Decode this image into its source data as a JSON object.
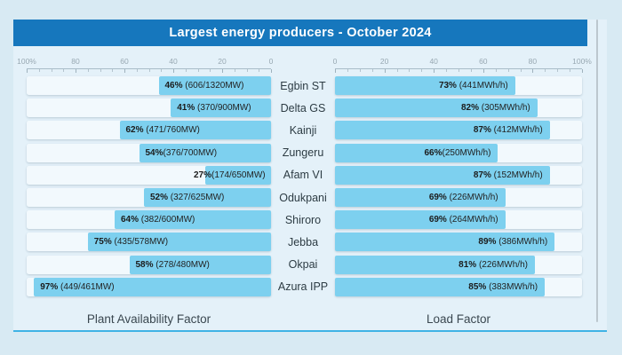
{
  "colors": {
    "header_bg": "#1677bd",
    "bar_fill": "#7dd0ef",
    "accent_line": "#3fb3e5",
    "card_bg": "#e4f1f9",
    "page_bg": "#d8eaf3"
  },
  "chart_data": {
    "type": "bar",
    "layout": "mirrored-horizontal",
    "title": "Largest energy producers - October 2024",
    "categories": [
      "Egbin ST",
      "Delta GS",
      "Kainji",
      "Zungeru",
      "Afam VI",
      "Odukpani",
      "Shiroro",
      "Jebba",
      "Okpai",
      "Azura IPP"
    ],
    "xlim": [
      0,
      100
    ],
    "grid": false,
    "series": [
      {
        "name": "Plant Availability Factor",
        "side": "left",
        "axis_ticks": [
          "100%",
          "80",
          "60",
          "40",
          "20",
          "0"
        ],
        "values": [
          46,
          41,
          62,
          54,
          27,
          52,
          64,
          75,
          58,
          97
        ],
        "value_labels": [
          {
            "pct": "46%",
            "detail": " (606/1320MW)"
          },
          {
            "pct": "41%",
            "detail": " (370/900MW)"
          },
          {
            "pct": "62%",
            "detail": " (471/760MW)"
          },
          {
            "pct": "54%",
            "detail": "(376/700MW)"
          },
          {
            "pct": "27%",
            "detail": "(174/650MW)"
          },
          {
            "pct": "52%",
            "detail": " (327/625MW)"
          },
          {
            "pct": "64%",
            "detail": " (382/600MW)"
          },
          {
            "pct": "75%",
            "detail": " (435/578MW)"
          },
          {
            "pct": "58%",
            "detail": " (278/480MW)"
          },
          {
            "pct": "97%",
            "detail": " (449/461MW)"
          }
        ]
      },
      {
        "name": "Load Factor",
        "side": "right",
        "axis_ticks": [
          "0",
          "20",
          "40",
          "60",
          "80",
          "100%"
        ],
        "values": [
          73,
          82,
          87,
          66,
          87,
          69,
          69,
          89,
          81,
          85
        ],
        "value_labels": [
          {
            "pct": "73%",
            "detail": " (441MWh/h)"
          },
          {
            "pct": "82%",
            "detail": " (305MWh/h)"
          },
          {
            "pct": "87%",
            "detail": " (412MWh/h)"
          },
          {
            "pct": "66%",
            "detail": "(250MWh/h)"
          },
          {
            "pct": "87%",
            "detail": " (152MWh/h)"
          },
          {
            "pct": "69%",
            "detail": " (226MWh/h)"
          },
          {
            "pct": "69%",
            "detail": " (264MWh/h)"
          },
          {
            "pct": "89%",
            "detail": " (386MWh/h)"
          },
          {
            "pct": "81%",
            "detail": " (226MWh/h)"
          },
          {
            "pct": "85%",
            "detail": " (383MWh/h)"
          }
        ]
      }
    ]
  }
}
